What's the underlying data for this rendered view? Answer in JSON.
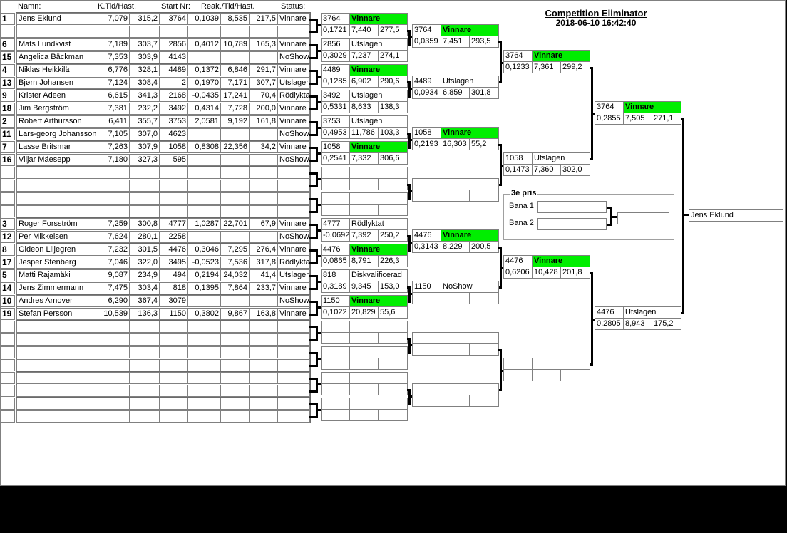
{
  "title": "Competition Eliminator",
  "datetime": "2018-06-10 16:42:40",
  "headers": {
    "name": "Namn:",
    "kt": "K.Tid/Hast.",
    "start": "Start Nr:",
    "reak": "Reak./Tid/Hast.",
    "status": "Status:"
  },
  "pairs": [
    [
      {
        "seed": "1",
        "name": "Jens Eklund",
        "kt": "7,079",
        "hast": "315,2",
        "start": "3764",
        "reak": "0,1039",
        "tid": "8,535",
        "hast2": "217,5",
        "status": "Vinnare"
      },
      {}
    ],
    [
      {
        "seed": "6",
        "name": "Mats Lundkvist",
        "kt": "7,189",
        "hast": "303,7",
        "start": "2856",
        "reak": "0,4012",
        "tid": "10,789",
        "hast2": "165,3",
        "status": "Vinnare"
      },
      {
        "seed": "15",
        "name": "Angelica Bäckman",
        "kt": "7,353",
        "hast": "303,9",
        "start": "4143",
        "status": "NoShow"
      }
    ],
    [
      {
        "seed": "4",
        "name": "Niklas Heikkilä",
        "kt": "6,776",
        "hast": "328,1",
        "start": "4489",
        "reak": "0,1372",
        "tid": "6,846",
        "hast2": "291,7",
        "status": "Vinnare"
      },
      {
        "seed": "13",
        "name": "Bjørn Johansen",
        "kt": "7,124",
        "hast": "308,4",
        "start": "2",
        "reak": "0,1970",
        "tid": "7,171",
        "hast2": "307,7",
        "status": "Utslager"
      }
    ],
    [
      {
        "seed": "9",
        "name": "Krister Adeen",
        "kt": "6,615",
        "hast": "341,3",
        "start": "2168",
        "reak": "-0,0435",
        "tid": "17,241",
        "hast2": "70,4",
        "status": "Rödlykta"
      },
      {
        "seed": "18",
        "name": "Jim Bergström",
        "kt": "7,381",
        "hast": "232,2",
        "start": "3492",
        "reak": "0,4314",
        "tid": "7,728",
        "hast2": "200,0",
        "status": "Vinnare"
      }
    ],
    [
      {
        "seed": "2",
        "name": "Robert Arthursson",
        "kt": "6,411",
        "hast": "355,7",
        "start": "3753",
        "reak": "2,0581",
        "tid": "9,192",
        "hast2": "161,8",
        "status": "Vinnare"
      },
      {
        "seed": "11",
        "name": "Lars-georg Johansson",
        "kt": "7,105",
        "hast": "307,0",
        "start": "4623",
        "status": "NoShow"
      }
    ],
    [
      {
        "seed": "7",
        "name": "Lasse Britsmar",
        "kt": "7,263",
        "hast": "307,9",
        "start": "1058",
        "reak": "0,8308",
        "tid": "22,356",
        "hast2": "34,2",
        "status": "Vinnare"
      },
      {
        "seed": "16",
        "name": "Viljar Mäesepp",
        "kt": "7,180",
        "hast": "327,3",
        "start": "595",
        "status": "NoShow"
      }
    ],
    [
      {},
      {}
    ],
    [
      {},
      {}
    ],
    [
      {
        "seed": "3",
        "name": "Roger Forsström",
        "kt": "7,259",
        "hast": "300,8",
        "start": "4777",
        "reak": "1,0287",
        "tid": "22,701",
        "hast2": "67,9",
        "status": "Vinnare"
      },
      {
        "seed": "12",
        "name": "Per Mikkelsen",
        "kt": "7,624",
        "hast": "280,1",
        "start": "2258",
        "status": "NoShow"
      }
    ],
    [
      {
        "seed": "8",
        "name": "Gideon Liljegren",
        "kt": "7,232",
        "hast": "301,5",
        "start": "4476",
        "reak": "0,3046",
        "tid": "7,295",
        "hast2": "276,4",
        "status": "Vinnare"
      },
      {
        "seed": "17",
        "name": "Jesper Stenberg",
        "kt": "7,046",
        "hast": "322,0",
        "start": "3495",
        "reak": "-0,0523",
        "tid": "7,536",
        "hast2": "317,8",
        "status": "Rödlykta"
      }
    ],
    [
      {
        "seed": "5",
        "name": "Matti Rajamäki",
        "kt": "9,087",
        "hast": "234,9",
        "start": "494",
        "reak": "0,2194",
        "tid": "24,032",
        "hast2": "41,4",
        "status": "Utslager"
      },
      {
        "seed": "14",
        "name": "Jens Zimmermann",
        "kt": "7,475",
        "hast": "303,4",
        "start": "818",
        "reak": "0,1395",
        "tid": "7,864",
        "hast2": "233,7",
        "status": "Vinnare"
      }
    ],
    [
      {
        "seed": "10",
        "name": "Andres Arnover",
        "kt": "6,290",
        "hast": "367,4",
        "start": "3079",
        "status": "NoShow"
      },
      {
        "seed": "19",
        "name": "Stefan Persson",
        "kt": "10,539",
        "hast": "136,3",
        "start": "1150",
        "reak": "0,3802",
        "tid": "9,867",
        "hast2": "163,8",
        "status": "Vinnare"
      }
    ],
    [
      {},
      {}
    ],
    [
      {},
      {}
    ],
    [
      {},
      {}
    ],
    [
      {},
      {}
    ]
  ],
  "rounds": [
    [
      {
        "start": "3764",
        "status": "Vinnare",
        "winner": true,
        "reak": "0,1721",
        "tid": "7,440",
        "hast": "277,5"
      },
      {
        "start": "2856",
        "status": "Utslagen",
        "reak": "0,3029",
        "tid": "7,237",
        "hast": "274,1"
      },
      {
        "start": "4489",
        "status": "Vinnare",
        "winner": true,
        "reak": "0,1285",
        "tid": "6,902",
        "hast": "290,6"
      },
      {
        "start": "3492",
        "status": "Utslagen",
        "reak": "0,5331",
        "tid": "8,633",
        "hast": "138,3"
      },
      {
        "start": "3753",
        "status": "Utslagen",
        "reak": "0,4953",
        "tid": "11,786",
        "hast": "103,3"
      },
      {
        "start": "1058",
        "status": "Vinnare",
        "winner": true,
        "reak": "0,2541",
        "tid": "7,332",
        "hast": "306,6"
      },
      {},
      {},
      {
        "start": "4777",
        "status": "Rödlyktat",
        "reak": "-0,0692",
        "tid": "7,392",
        "hast": "250,2"
      },
      {
        "start": "4476",
        "status": "Vinnare",
        "winner": true,
        "reak": "0,0865",
        "tid": "8,791",
        "hast": "226,3"
      },
      {
        "start": "818",
        "status": "Diskvalificerad",
        "reak": "0,3189",
        "tid": "9,345",
        "hast": "153,0"
      },
      {
        "start": "1150",
        "status": "Vinnare",
        "winner": true,
        "reak": "0,1022",
        "tid": "20,829",
        "hast": "55,6"
      },
      {},
      {},
      {},
      {}
    ],
    [
      {
        "start": "3764",
        "status": "Vinnare",
        "winner": true,
        "reak": "0,0359",
        "tid": "7,451",
        "hast": "293,5"
      },
      {
        "start": "4489",
        "status": "Utslagen",
        "reak": "0,0934",
        "tid": "6,859",
        "hast": "301,8"
      },
      {
        "start": "1058",
        "status": "Vinnare",
        "winner": true,
        "reak": "0,2193",
        "tid": "16,303",
        "hast": "55,2"
      },
      {},
      {
        "start": "4476",
        "status": "Vinnare",
        "winner": true,
        "reak": "0,3143",
        "tid": "8,229",
        "hast": "200,5"
      },
      {
        "start": "1150",
        "status": "NoShow"
      },
      {},
      {}
    ],
    [
      {
        "start": "3764",
        "status": "Vinnare",
        "winner": true,
        "reak": "0,1233",
        "tid": "7,361",
        "hast": "299,2"
      },
      {
        "start": "1058",
        "status": "Utslagen",
        "reak": "0,1473",
        "tid": "7,360",
        "hast": "302,0"
      },
      {
        "start": "4476",
        "status": "Vinnare",
        "winner": true,
        "reak": "0,6206",
        "tid": "10,428",
        "hast": "201,8"
      },
      {}
    ],
    [
      {
        "start": "3764",
        "status": "Vinnare",
        "winner": true,
        "reak": "0,2855",
        "tid": "7,505",
        "hast": "271,1"
      },
      {
        "start": "4476",
        "status": "Utslagen",
        "reak": "0,2805",
        "tid": "8,943",
        "hast": "175,2"
      }
    ]
  ],
  "final_winner": "Jens Eklund",
  "third_prize": {
    "title": "3e pris",
    "lane1": "Bana 1",
    "lane2": "Bana 2"
  },
  "colors": {
    "winner": "#00ee00"
  }
}
